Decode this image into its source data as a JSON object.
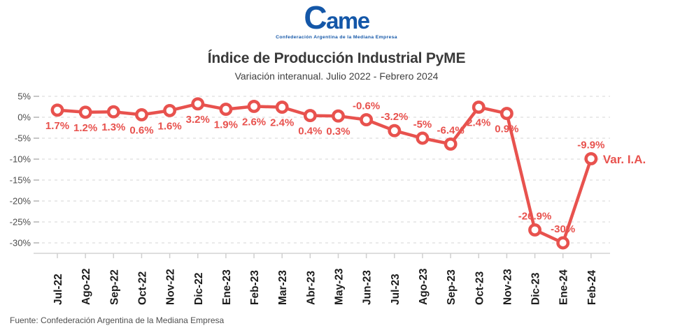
{
  "logo": {
    "wordmark": "Came",
    "caption": "Confederación Argentina de la Mediana Empresa",
    "color": "#1457A8"
  },
  "header": {
    "title": "Índice de Producción Industrial PyME",
    "subtitle": "Variación interanual. Julio 2022 - Febrero 2024"
  },
  "footer": {
    "source": "Fuente: Confederación Argentina de la Mediana Empresa"
  },
  "chart_data": {
    "type": "line",
    "title": "Índice de Producción Industrial PyME",
    "subtitle": "Variación interanual. Julio 2022 - Febrero 2024",
    "series_label": "Var. I.A.",
    "categories": [
      "Jul-22",
      "Ago-22",
      "Sep-22",
      "Oct-22",
      "Nov-22",
      "Dic-22",
      "Ene-23",
      "Feb-23",
      "Mar-23",
      "Abr-23",
      "May-23",
      "Jun-23",
      "Jul-23",
      "Ago-23",
      "Sep-23",
      "Oct-23",
      "Nov-23",
      "Dic-23",
      "Ene-24",
      "Feb-24"
    ],
    "values": [
      1.7,
      1.2,
      1.3,
      0.6,
      1.6,
      3.2,
      1.9,
      2.6,
      2.4,
      0.4,
      0.3,
      -0.6,
      -3.2,
      -5,
      -6.4,
      2.4,
      0.9,
      -26.9,
      -30,
      -9.9
    ],
    "labels": [
      "1.7%",
      "1.2%",
      "1.3%",
      "0.6%",
      "1.6%",
      "3.2%",
      "1.9%",
      "2.6%",
      "2.4%",
      "0.4%",
      "0.3%",
      "-0.6%",
      "-3.2%",
      "-5%",
      "-6.4%",
      "2.4%",
      "0.9%",
      "-26.9%",
      "-30%",
      "-9.9%"
    ],
    "yticks": [
      5,
      0,
      -5,
      -10,
      -15,
      -20,
      -25,
      -30
    ],
    "ytick_labels": [
      "5%",
      "0%",
      "-5%",
      "-10%",
      "-15%",
      "-20%",
      "-25%",
      "-30%"
    ],
    "ylim": [
      -32,
      6
    ],
    "grid": true,
    "grid_style": "dashed-horizontal",
    "legend_position": "right-of-last-point",
    "line_color": "#E8524E",
    "marker": "open-circle"
  }
}
